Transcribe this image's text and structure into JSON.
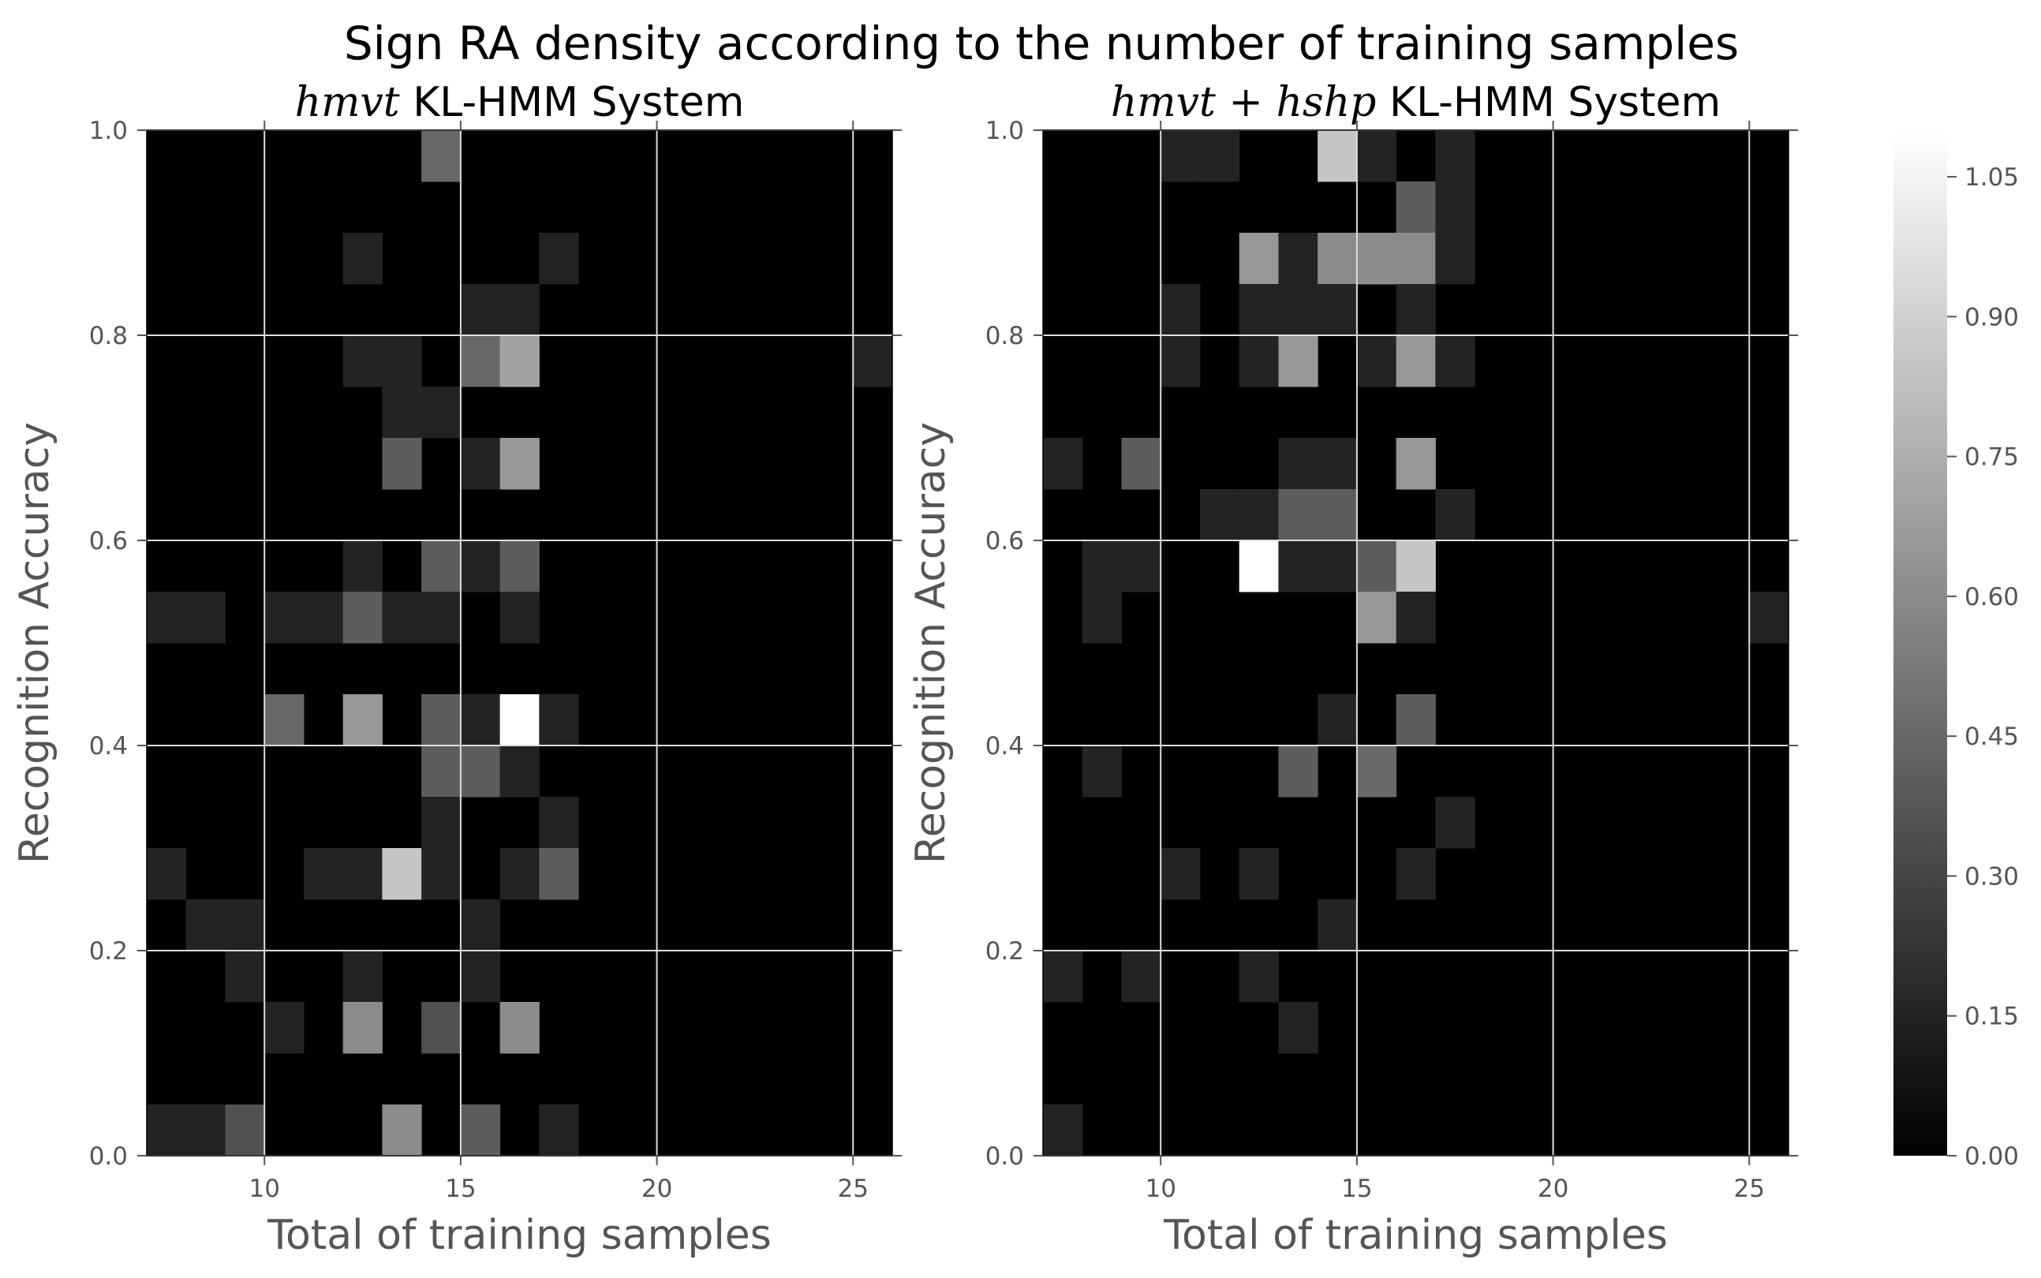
{
  "chart_data": {
    "type": "heatmap",
    "title": "Sign RA density according to the number of training samples",
    "colormap": "gray",
    "colorbar": {
      "range": [
        0,
        1.1
      ],
      "ticks": [
        "0.00",
        "0.15",
        "0.30",
        "0.45",
        "0.60",
        "0.75",
        "0.90",
        "1.05"
      ]
    },
    "panels": [
      {
        "title_math": "hmvt",
        "title_text": "KL-HMM System",
        "xlabel": "Total of training samples",
        "ylabel": "Recognition Accuracy",
        "xlim": [
          7,
          26
        ],
        "ylim": [
          0.0,
          1.0
        ],
        "x_bin_width": 1,
        "y_bin_height": 0.05,
        "xticks": [
          "10",
          "15",
          "20",
          "25"
        ],
        "yticks": [
          "0.0",
          "0.2",
          "0.4",
          "0.6",
          "0.8",
          "1.0"
        ],
        "grid": true,
        "cells": [
          {
            "x": 14,
            "y": 0.95,
            "v": 0.45
          },
          {
            "x": 12,
            "y": 0.85,
            "v": 0.15
          },
          {
            "x": 17,
            "y": 0.85,
            "v": 0.15
          },
          {
            "x": 15,
            "y": 0.8,
            "v": 0.15
          },
          {
            "x": 16,
            "y": 0.8,
            "v": 0.15
          },
          {
            "x": 12,
            "y": 0.75,
            "v": 0.15
          },
          {
            "x": 13,
            "y": 0.75,
            "v": 0.15
          },
          {
            "x": 15,
            "y": 0.75,
            "v": 0.45
          },
          {
            "x": 16,
            "y": 0.75,
            "v": 0.7
          },
          {
            "x": 25,
            "y": 0.75,
            "v": 0.15
          },
          {
            "x": 13,
            "y": 0.7,
            "v": 0.15
          },
          {
            "x": 14,
            "y": 0.7,
            "v": 0.15
          },
          {
            "x": 13,
            "y": 0.65,
            "v": 0.4
          },
          {
            "x": 15,
            "y": 0.65,
            "v": 0.15
          },
          {
            "x": 16,
            "y": 0.65,
            "v": 0.65
          },
          {
            "x": 12,
            "y": 0.55,
            "v": 0.15
          },
          {
            "x": 14,
            "y": 0.55,
            "v": 0.4
          },
          {
            "x": 15,
            "y": 0.55,
            "v": 0.15
          },
          {
            "x": 16,
            "y": 0.55,
            "v": 0.4
          },
          {
            "x": 7,
            "y": 0.5,
            "v": 0.15
          },
          {
            "x": 8,
            "y": 0.5,
            "v": 0.15
          },
          {
            "x": 10,
            "y": 0.5,
            "v": 0.15
          },
          {
            "x": 11,
            "y": 0.5,
            "v": 0.15
          },
          {
            "x": 12,
            "y": 0.5,
            "v": 0.4
          },
          {
            "x": 13,
            "y": 0.5,
            "v": 0.15
          },
          {
            "x": 14,
            "y": 0.5,
            "v": 0.15
          },
          {
            "x": 16,
            "y": 0.5,
            "v": 0.15
          },
          {
            "x": 10,
            "y": 0.4,
            "v": 0.45
          },
          {
            "x": 12,
            "y": 0.4,
            "v": 0.65
          },
          {
            "x": 14,
            "y": 0.4,
            "v": 0.4
          },
          {
            "x": 15,
            "y": 0.4,
            "v": 0.15
          },
          {
            "x": 16,
            "y": 0.4,
            "v": 1.1
          },
          {
            "x": 17,
            "y": 0.4,
            "v": 0.15
          },
          {
            "x": 14,
            "y": 0.35,
            "v": 0.4
          },
          {
            "x": 15,
            "y": 0.35,
            "v": 0.4
          },
          {
            "x": 16,
            "y": 0.35,
            "v": 0.15
          },
          {
            "x": 14,
            "y": 0.3,
            "v": 0.15
          },
          {
            "x": 17,
            "y": 0.3,
            "v": 0.15
          },
          {
            "x": 7,
            "y": 0.25,
            "v": 0.15
          },
          {
            "x": 11,
            "y": 0.25,
            "v": 0.15
          },
          {
            "x": 12,
            "y": 0.25,
            "v": 0.15
          },
          {
            "x": 13,
            "y": 0.25,
            "v": 0.85
          },
          {
            "x": 14,
            "y": 0.25,
            "v": 0.15
          },
          {
            "x": 16,
            "y": 0.25,
            "v": 0.15
          },
          {
            "x": 17,
            "y": 0.25,
            "v": 0.4
          },
          {
            "x": 8,
            "y": 0.2,
            "v": 0.15
          },
          {
            "x": 9,
            "y": 0.2,
            "v": 0.15
          },
          {
            "x": 15,
            "y": 0.2,
            "v": 0.15
          },
          {
            "x": 9,
            "y": 0.15,
            "v": 0.15
          },
          {
            "x": 12,
            "y": 0.15,
            "v": 0.15
          },
          {
            "x": 15,
            "y": 0.15,
            "v": 0.15
          },
          {
            "x": 10,
            "y": 0.1,
            "v": 0.15
          },
          {
            "x": 12,
            "y": 0.1,
            "v": 0.6
          },
          {
            "x": 14,
            "y": 0.1,
            "v": 0.35
          },
          {
            "x": 16,
            "y": 0.1,
            "v": 0.6
          },
          {
            "x": 7,
            "y": 0.0,
            "v": 0.15
          },
          {
            "x": 8,
            "y": 0.0,
            "v": 0.15
          },
          {
            "x": 9,
            "y": 0.0,
            "v": 0.35
          },
          {
            "x": 13,
            "y": 0.0,
            "v": 0.6
          },
          {
            "x": 15,
            "y": 0.0,
            "v": 0.4
          },
          {
            "x": 17,
            "y": 0.0,
            "v": 0.15
          }
        ]
      },
      {
        "title_math": "hmvt + hshp",
        "title_text": "KL-HMM System",
        "xlabel": "Total of training samples",
        "ylabel": "Recognition Accuracy",
        "xlim": [
          7,
          26
        ],
        "ylim": [
          0.0,
          1.0
        ],
        "x_bin_width": 1,
        "y_bin_height": 0.05,
        "xticks": [
          "10",
          "15",
          "20",
          "25"
        ],
        "yticks": [
          "0.0",
          "0.2",
          "0.4",
          "0.6",
          "0.8",
          "1.0"
        ],
        "grid": true,
        "cells": [
          {
            "x": 10,
            "y": 0.95,
            "v": 0.15
          },
          {
            "x": 11,
            "y": 0.95,
            "v": 0.15
          },
          {
            "x": 14,
            "y": 0.95,
            "v": 0.85
          },
          {
            "x": 15,
            "y": 0.95,
            "v": 0.15
          },
          {
            "x": 17,
            "y": 0.95,
            "v": 0.15
          },
          {
            "x": 16,
            "y": 0.9,
            "v": 0.4
          },
          {
            "x": 17,
            "y": 0.9,
            "v": 0.15
          },
          {
            "x": 12,
            "y": 0.85,
            "v": 0.65
          },
          {
            "x": 13,
            "y": 0.85,
            "v": 0.15
          },
          {
            "x": 14,
            "y": 0.85,
            "v": 0.6
          },
          {
            "x": 15,
            "y": 0.85,
            "v": 0.6
          },
          {
            "x": 16,
            "y": 0.85,
            "v": 0.6
          },
          {
            "x": 17,
            "y": 0.85,
            "v": 0.15
          },
          {
            "x": 10,
            "y": 0.8,
            "v": 0.15
          },
          {
            "x": 12,
            "y": 0.8,
            "v": 0.15
          },
          {
            "x": 13,
            "y": 0.8,
            "v": 0.15
          },
          {
            "x": 14,
            "y": 0.8,
            "v": 0.15
          },
          {
            "x": 16,
            "y": 0.8,
            "v": 0.15
          },
          {
            "x": 10,
            "y": 0.75,
            "v": 0.15
          },
          {
            "x": 12,
            "y": 0.75,
            "v": 0.15
          },
          {
            "x": 13,
            "y": 0.75,
            "v": 0.65
          },
          {
            "x": 15,
            "y": 0.75,
            "v": 0.15
          },
          {
            "x": 16,
            "y": 0.75,
            "v": 0.65
          },
          {
            "x": 17,
            "y": 0.75,
            "v": 0.15
          },
          {
            "x": 7,
            "y": 0.65,
            "v": 0.15
          },
          {
            "x": 9,
            "y": 0.65,
            "v": 0.4
          },
          {
            "x": 13,
            "y": 0.65,
            "v": 0.15
          },
          {
            "x": 14,
            "y": 0.65,
            "v": 0.15
          },
          {
            "x": 16,
            "y": 0.65,
            "v": 0.65
          },
          {
            "x": 11,
            "y": 0.6,
            "v": 0.15
          },
          {
            "x": 12,
            "y": 0.6,
            "v": 0.15
          },
          {
            "x": 13,
            "y": 0.6,
            "v": 0.4
          },
          {
            "x": 14,
            "y": 0.6,
            "v": 0.4
          },
          {
            "x": 17,
            "y": 0.6,
            "v": 0.15
          },
          {
            "x": 8,
            "y": 0.55,
            "v": 0.15
          },
          {
            "x": 9,
            "y": 0.55,
            "v": 0.15
          },
          {
            "x": 12,
            "y": 0.55,
            "v": 1.1
          },
          {
            "x": 13,
            "y": 0.55,
            "v": 0.15
          },
          {
            "x": 14,
            "y": 0.55,
            "v": 0.15
          },
          {
            "x": 15,
            "y": 0.55,
            "v": 0.4
          },
          {
            "x": 16,
            "y": 0.55,
            "v": 0.85
          },
          {
            "x": 8,
            "y": 0.5,
            "v": 0.15
          },
          {
            "x": 15,
            "y": 0.5,
            "v": 0.65
          },
          {
            "x": 16,
            "y": 0.5,
            "v": 0.15
          },
          {
            "x": 25,
            "y": 0.5,
            "v": 0.15
          },
          {
            "x": 14,
            "y": 0.4,
            "v": 0.15
          },
          {
            "x": 16,
            "y": 0.4,
            "v": 0.4
          },
          {
            "x": 8,
            "y": 0.35,
            "v": 0.15
          },
          {
            "x": 13,
            "y": 0.35,
            "v": 0.4
          },
          {
            "x": 15,
            "y": 0.35,
            "v": 0.45
          },
          {
            "x": 17,
            "y": 0.3,
            "v": 0.15
          },
          {
            "x": 10,
            "y": 0.25,
            "v": 0.15
          },
          {
            "x": 12,
            "y": 0.25,
            "v": 0.15
          },
          {
            "x": 16,
            "y": 0.25,
            "v": 0.15
          },
          {
            "x": 14,
            "y": 0.2,
            "v": 0.15
          },
          {
            "x": 7,
            "y": 0.15,
            "v": 0.15
          },
          {
            "x": 9,
            "y": 0.15,
            "v": 0.15
          },
          {
            "x": 12,
            "y": 0.15,
            "v": 0.15
          },
          {
            "x": 13,
            "y": 0.1,
            "v": 0.15
          },
          {
            "x": 7,
            "y": 0.0,
            "v": 0.15
          }
        ]
      }
    ]
  }
}
